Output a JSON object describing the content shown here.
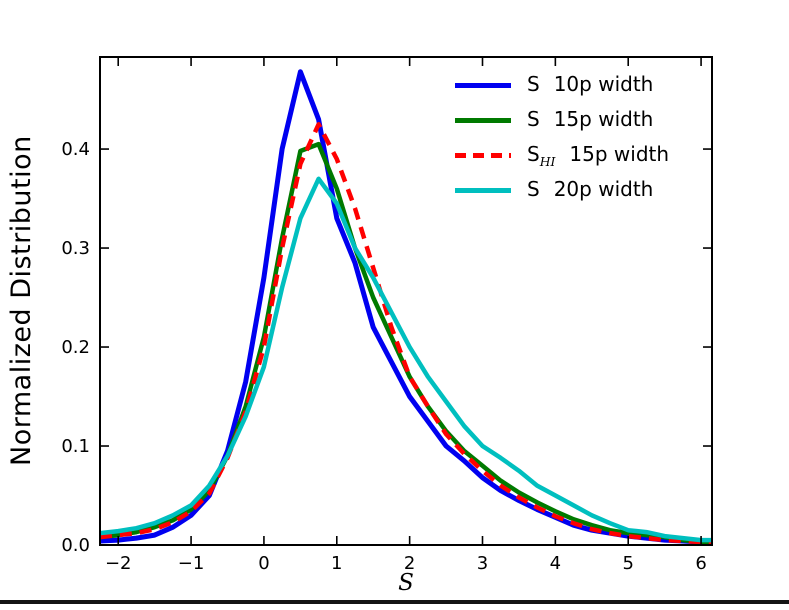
{
  "figure": {
    "background": "#ffffff",
    "axis_color": "#000000"
  },
  "chart_data": {
    "type": "line",
    "title": "",
    "xlabel": "S",
    "ylabel": "Normalized Distribution",
    "xlim": [
      -2.25,
      6.15
    ],
    "ylim": [
      0,
      0.493
    ],
    "grid": false,
    "legend_position": "upper right",
    "xticks": {
      "values": [
        -2,
        -1,
        0,
        1,
        2,
        3,
        4,
        5,
        6
      ],
      "labels": [
        "−2",
        "−1",
        "0",
        "1",
        "2",
        "3",
        "4",
        "5",
        "6"
      ]
    },
    "yticks": {
      "values": [
        0,
        0.1,
        0.2,
        0.3,
        0.4
      ],
      "labels": [
        "0.0",
        "0.1",
        "0.2",
        "0.3",
        "0.4"
      ]
    },
    "x": [
      -2.25,
      -2,
      -1.75,
      -1.5,
      -1.25,
      -1,
      -0.75,
      -0.5,
      -0.25,
      0,
      0.25,
      0.5,
      0.75,
      1,
      1.25,
      1.5,
      1.75,
      2,
      2.25,
      2.5,
      2.75,
      3,
      3.25,
      3.5,
      3.75,
      4,
      4.25,
      4.5,
      4.75,
      5,
      5.25,
      5.5,
      5.75,
      6,
      6.15
    ],
    "series": [
      {
        "id": "s-10p-width",
        "label_pre": "S",
        "label_sub": "",
        "label_post": "10p width",
        "color": "#0000f0",
        "dash": "",
        "width": 5,
        "values": [
          0.004,
          0.005,
          0.007,
          0.01,
          0.018,
          0.03,
          0.05,
          0.095,
          0.165,
          0.27,
          0.4,
          0.478,
          0.43,
          0.33,
          0.285,
          0.22,
          0.185,
          0.15,
          0.125,
          0.1,
          0.085,
          0.068,
          0.055,
          0.045,
          0.036,
          0.028,
          0.02,
          0.015,
          0.012,
          0.009,
          0.007,
          0.005,
          0.004,
          0.003,
          0.003
        ]
      },
      {
        "id": "s-15p-width",
        "label_pre": "S",
        "label_sub": "",
        "label_post": "15p width",
        "color": "#007a00",
        "dash": "",
        "width": 4.5,
        "values": [
          0.008,
          0.01,
          0.013,
          0.018,
          0.025,
          0.036,
          0.055,
          0.09,
          0.14,
          0.21,
          0.31,
          0.398,
          0.405,
          0.36,
          0.3,
          0.25,
          0.21,
          0.17,
          0.14,
          0.115,
          0.095,
          0.08,
          0.065,
          0.053,
          0.043,
          0.034,
          0.026,
          0.02,
          0.015,
          0.012,
          0.01,
          0.008,
          0.005,
          0.003,
          0.003
        ]
      },
      {
        "id": "shi-15p-width",
        "label_pre": "S",
        "label_sub": "HI",
        "label_post": "15p width",
        "color": "#ff0000",
        "dash": "12 8",
        "width": 4.5,
        "values": [
          0.008,
          0.01,
          0.012,
          0.016,
          0.023,
          0.034,
          0.052,
          0.088,
          0.135,
          0.2,
          0.3,
          0.385,
          0.425,
          0.39,
          0.34,
          0.28,
          0.22,
          0.17,
          0.14,
          0.112,
          0.092,
          0.075,
          0.06,
          0.048,
          0.038,
          0.029,
          0.022,
          0.016,
          0.012,
          0.009,
          0.007,
          0.005,
          0.004,
          0.003,
          0.003
        ]
      },
      {
        "id": "s-20p-width",
        "label_pre": "S",
        "label_sub": "",
        "label_post": "20p width",
        "color": "#00bfbf",
        "dash": "",
        "width": 4.5,
        "values": [
          0.012,
          0.014,
          0.017,
          0.022,
          0.03,
          0.04,
          0.06,
          0.09,
          0.13,
          0.18,
          0.26,
          0.33,
          0.37,
          0.345,
          0.3,
          0.27,
          0.235,
          0.2,
          0.17,
          0.145,
          0.12,
          0.1,
          0.088,
          0.075,
          0.06,
          0.05,
          0.04,
          0.03,
          0.022,
          0.015,
          0.013,
          0.009,
          0.007,
          0.005,
          0.005
        ]
      }
    ]
  }
}
